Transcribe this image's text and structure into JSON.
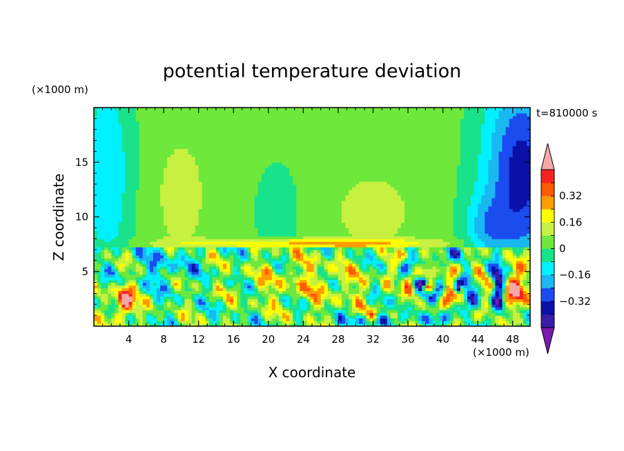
{
  "chart_data": {
    "type": "heatmap",
    "title": "potential temperature deviation",
    "time_label": "t=810000 s",
    "xlabel": "X coordinate",
    "ylabel": "Z coordinate",
    "x_unit": "(×1000 m)",
    "y_unit": "(×1000 m)",
    "xlim": [
      0,
      50
    ],
    "ylim": [
      0,
      20
    ],
    "x_ticks": [
      4,
      8,
      12,
      16,
      20,
      24,
      28,
      32,
      36,
      40,
      44,
      48
    ],
    "y_ticks": [
      5,
      10,
      15
    ],
    "colorbar": {
      "levels": [
        -0.48,
        -0.4,
        -0.32,
        -0.24,
        -0.16,
        -0.08,
        0,
        0.08,
        0.16,
        0.24,
        0.32,
        0.4,
        0.48
      ],
      "tick_values": [
        -0.32,
        -0.16,
        0,
        0.16,
        0.32
      ],
      "tick_labels": [
        "−0.32",
        "−0.16",
        "0",
        "0.16",
        "0.32"
      ],
      "extend": "both",
      "colors": [
        "#7a1ab0",
        "#3a1ca8",
        "#0a10a8",
        "#1a4cf0",
        "#1ab8f0",
        "#00f0ff",
        "#18e38a",
        "#6ee83a",
        "#c8f040",
        "#ffff00",
        "#ff9c00",
        "#ff5a00",
        "#f52222",
        "#f5a8a8"
      ]
    },
    "features": [
      {
        "name": "warm column",
        "x": [
          6.5,
          13.5
        ],
        "z": [
          7.5,
          17.5
        ],
        "value": 0.12
      },
      {
        "name": "cool column",
        "x": [
          18.5,
          23.5
        ],
        "z": [
          7.5,
          13.5
        ],
        "value": -0.04
      },
      {
        "name": "warm column",
        "x": [
          27,
          38
        ],
        "z": [
          7.5,
          14
        ],
        "value": 0.12
      },
      {
        "name": "cold region",
        "x": [
          44,
          50
        ],
        "z": [
          2,
          19
        ],
        "value": -0.3
      },
      {
        "name": "cold region",
        "x": [
          0,
          5
        ],
        "z": [
          7,
          20
        ],
        "value": -0.16
      },
      {
        "name": "warm anomaly",
        "x": [
          2.5,
          5
        ],
        "z": [
          1,
          4
        ],
        "value": 0.5
      },
      {
        "name": "warm anomaly",
        "x": [
          47,
          49.5
        ],
        "z": [
          1,
          5
        ],
        "value": 0.5
      },
      {
        "name": "vortex",
        "x": [
          36,
          40
        ],
        "z": [
          2,
          6
        ],
        "value": 0.3
      },
      {
        "name": "vortex",
        "x": [
          40,
          44
        ],
        "z": [
          1,
          6
        ],
        "value": 0.3
      }
    ]
  }
}
